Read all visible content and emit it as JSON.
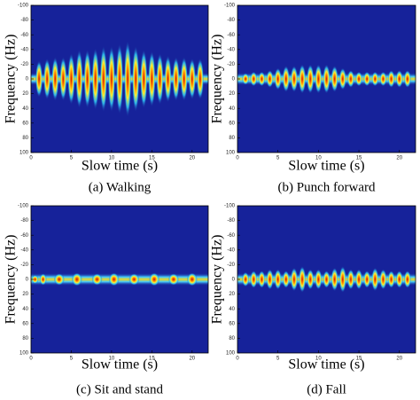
{
  "chart_data": [
    {
      "type": "spectrogram",
      "caption": "(a) Walking",
      "xlabel": "Slow time (s)",
      "ylabel": "Frequency (Hz)",
      "xlim": [
        0,
        22
      ],
      "xticks": [
        0,
        5,
        10,
        15,
        20
      ],
      "ylim": [
        100,
        -100
      ],
      "yticks": [
        -100,
        -80,
        -60,
        -40,
        -20,
        0,
        20,
        40,
        60,
        80,
        100
      ],
      "x": [
        1,
        2,
        3,
        4,
        5,
        6,
        7,
        8,
        9,
        10,
        11,
        12,
        13,
        14,
        15,
        16,
        17,
        18,
        19,
        20,
        21
      ],
      "values": [
        25,
        28,
        30,
        30,
        35,
        40,
        40,
        42,
        45,
        45,
        48,
        52,
        45,
        40,
        38,
        35,
        32,
        30,
        30,
        28,
        28
      ]
    },
    {
      "type": "spectrogram",
      "caption": "(b) Punch forward",
      "xlabel": "Slow time (s)",
      "ylabel": "Frequency (Hz)",
      "xlim": [
        0,
        22
      ],
      "xticks": [
        0,
        5,
        10,
        15,
        20
      ],
      "ylim": [
        100,
        -100
      ],
      "yticks": [
        -100,
        -80,
        -60,
        -40,
        -20,
        0,
        20,
        40,
        60,
        80,
        100
      ],
      "x": [
        1,
        2,
        3,
        4,
        5,
        6,
        7,
        8,
        9,
        10,
        11,
        12,
        13,
        14,
        15,
        16,
        17,
        18,
        19,
        20,
        21
      ],
      "values": [
        8,
        10,
        10,
        12,
        15,
        18,
        18,
        20,
        20,
        20,
        20,
        18,
        15,
        12,
        10,
        10,
        10,
        10,
        12,
        12,
        12
      ]
    },
    {
      "type": "spectrogram",
      "caption": "(c) Sit and stand",
      "xlabel": "Slow time (s)",
      "ylabel": "Frequency (Hz)",
      "xlim": [
        0,
        22
      ],
      "xticks": [
        0,
        5,
        10,
        15,
        20
      ],
      "ylim": [
        100,
        -100
      ],
      "yticks": [
        -100,
        -80,
        -60,
        -40,
        -20,
        0,
        20,
        40,
        60,
        80,
        100
      ],
      "x": [
        0.5,
        1.5,
        3.5,
        5.7,
        8.2,
        10.3,
        12.8,
        15.3,
        17.7,
        20
      ],
      "values": [
        6,
        8,
        8,
        9,
        8,
        9,
        8,
        9,
        8,
        9
      ]
    },
    {
      "type": "spectrogram",
      "caption": "(d) Fall",
      "xlabel": "Slow time (s)",
      "ylabel": "Frequency (Hz)",
      "xlim": [
        0,
        22
      ],
      "xticks": [
        0,
        5,
        10,
        15,
        20
      ],
      "ylim": [
        100,
        -100
      ],
      "yticks": [
        -100,
        -80,
        -60,
        -40,
        -20,
        0,
        20,
        40,
        60,
        80,
        100
      ],
      "x": [
        1,
        2,
        3,
        4,
        5,
        6,
        7,
        8,
        9,
        10,
        11,
        12,
        13,
        14,
        15,
        16,
        17,
        18,
        19,
        20,
        21
      ],
      "values": [
        10,
        12,
        12,
        14,
        14,
        12,
        16,
        18,
        14,
        14,
        12,
        16,
        18,
        14,
        14,
        12,
        16,
        14,
        12,
        12,
        12
      ]
    }
  ]
}
